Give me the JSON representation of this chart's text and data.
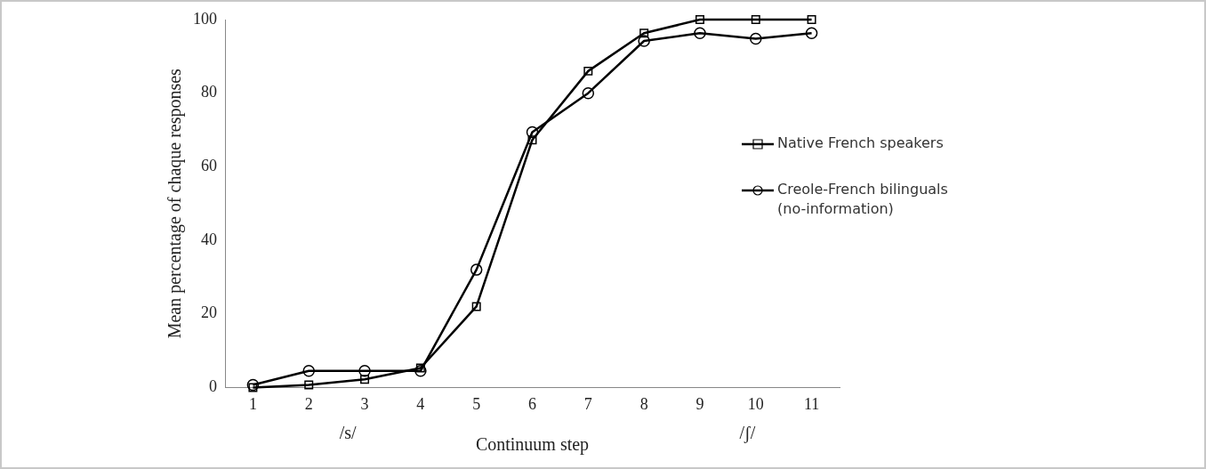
{
  "chart_data": {
    "type": "line",
    "xlabel": "Continuum step",
    "ylabel": "Mean percentage of chaque responses",
    "categories": [
      "1",
      "2",
      "3",
      "4",
      "5",
      "6",
      "7",
      "8",
      "9",
      "10",
      "11"
    ],
    "series": [
      {
        "name": "Native French speakers",
        "color": "#000000",
        "marker": "square",
        "values": [
          0,
          0.7,
          2.2,
          5.3,
          22,
          67.3,
          86,
          96.3,
          100,
          100,
          100
        ]
      },
      {
        "name": "Creole-French bilinguals (no-information)",
        "color": "#000000",
        "marker": "circle",
        "values": [
          0.7,
          4.5,
          4.5,
          4.5,
          32,
          69.4,
          80,
          94.2,
          96.3,
          94.8,
          96.3
        ]
      }
    ],
    "ylim": [
      0,
      100
    ],
    "yticks": [
      0,
      20,
      40,
      60,
      80,
      100
    ],
    "annotations": [
      "/s/",
      "/ʃ/"
    ],
    "grid": false,
    "legend": "right",
    "line_style": "solid"
  }
}
